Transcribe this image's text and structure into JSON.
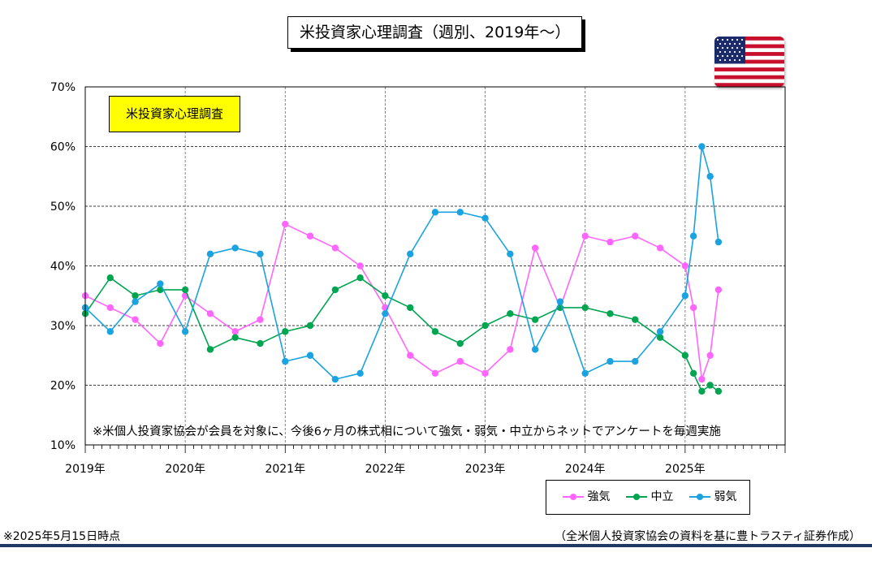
{
  "title": "米投資家心理調査（週別、2019年～）",
  "label_box": "米投資家心理調査",
  "note": "※米個人投資家協会が会員を対象に、今後6ヶ月の株式相について強気・弱気・中立からネットでアンケートを毎週実施",
  "as_of": "※2025年5月15日時点",
  "source": "（全米個人投資家協会の資料を基に豊トラスティ証券作成）",
  "flag_icon": "us-flag-icon",
  "chart_data": {
    "type": "line",
    "title": "米投資家心理調査（週別、2019年～）",
    "xlabel": "",
    "ylabel": "",
    "ylim": [
      10,
      70
    ],
    "xlim": [
      "2019-01",
      "2026-01"
    ],
    "y_ticks": [
      "10%",
      "20%",
      "30%",
      "40%",
      "50%",
      "60%",
      "70%"
    ],
    "x_ticks": [
      "2019年",
      "2020年",
      "2021年",
      "2022年",
      "2023年",
      "2024年",
      "2025年"
    ],
    "grid": "horizontal dashed",
    "legend_position": "bottom-right",
    "x": [
      "2019-01",
      "2019-04",
      "2019-07",
      "2019-10",
      "2020-01",
      "2020-04",
      "2020-07",
      "2020-10",
      "2021-01",
      "2021-04",
      "2021-07",
      "2021-10",
      "2022-01",
      "2022-04",
      "2022-07",
      "2022-10",
      "2023-01",
      "2023-04",
      "2023-07",
      "2023-10",
      "2024-01",
      "2024-04",
      "2024-07",
      "2024-10",
      "2025-01",
      "2025-02",
      "2025-03",
      "2025-04",
      "2025-05"
    ],
    "series": [
      {
        "name": "強気",
        "color": "#ff66ff",
        "values": [
          35,
          33,
          31,
          27,
          35,
          32,
          29,
          31,
          47,
          45,
          43,
          40,
          33,
          25,
          22,
          24,
          22,
          26,
          43,
          33,
          45,
          44,
          45,
          43,
          40,
          33,
          21,
          25,
          36
        ]
      },
      {
        "name": "中立",
        "color": "#00a550",
        "values": [
          32,
          38,
          35,
          36,
          36,
          26,
          28,
          27,
          29,
          30,
          36,
          38,
          35,
          33,
          29,
          27,
          30,
          32,
          31,
          33,
          33,
          32,
          31,
          28,
          25,
          22,
          19,
          20,
          19
        ]
      },
      {
        "name": "弱気",
        "color": "#1aa3e0",
        "values": [
          33,
          29,
          34,
          37,
          29,
          42,
          43,
          42,
          24,
          25,
          21,
          22,
          32,
          42,
          49,
          49,
          48,
          42,
          26,
          34,
          22,
          24,
          24,
          29,
          35,
          45,
          60,
          55,
          44
        ]
      }
    ]
  }
}
